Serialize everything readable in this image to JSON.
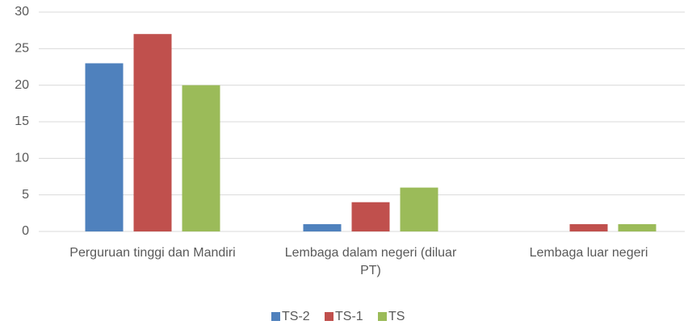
{
  "chart_data": {
    "type": "bar",
    "categories": [
      "Perguruan tinggi dan Mandiri",
      "Lembaga dalam negeri (diluar PT)",
      "Lembaga luar negeri"
    ],
    "series": [
      {
        "name": "TS-2",
        "color": "#4f81bd",
        "values": [
          23,
          1,
          0
        ]
      },
      {
        "name": "TS-1",
        "color": "#c0504d",
        "values": [
          27,
          4,
          1
        ]
      },
      {
        "name": "TS",
        "color": "#9bbb59",
        "values": [
          20,
          6,
          1
        ]
      }
    ],
    "ylim": [
      0,
      30
    ],
    "yticks": [
      0,
      5,
      10,
      15,
      20,
      25,
      30
    ],
    "grid": true,
    "legend": "bottom"
  }
}
